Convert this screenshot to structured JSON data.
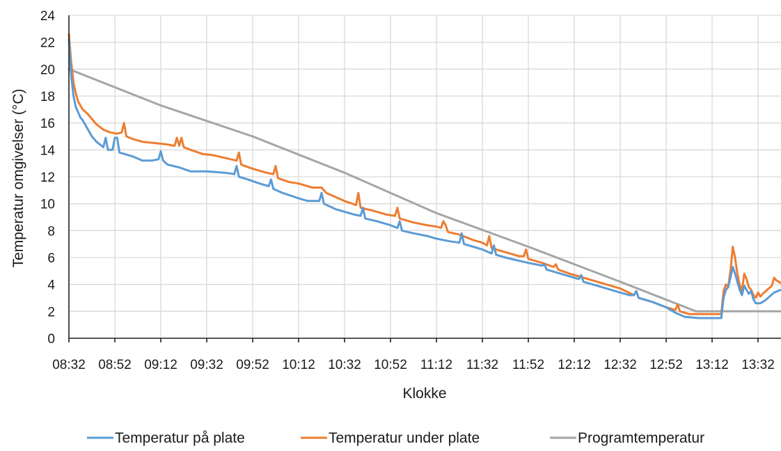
{
  "chart_data": {
    "type": "line",
    "title": "",
    "xlabel": "Klokke",
    "ylabel": "Temperatur omgivelser (°C)",
    "ylim": [
      0,
      24
    ],
    "yticks": [
      0,
      2,
      4,
      6,
      8,
      10,
      12,
      14,
      16,
      18,
      20,
      22,
      24
    ],
    "xlim": [
      "08:32",
      "13:42"
    ],
    "xticks": [
      "08:32",
      "08:52",
      "09:12",
      "09:32",
      "09:52",
      "10:12",
      "10:32",
      "10:52",
      "11:12",
      "11:32",
      "11:52",
      "12:12",
      "12:32",
      "12:52",
      "13:12",
      "13:32"
    ],
    "grid": true,
    "legend_position": "bottom",
    "series": [
      {
        "name": "Temperatur på plate",
        "color": "#5b9bd5",
        "points": [
          [
            "08:32",
            22.2
          ],
          [
            "08:33",
            19.5
          ],
          [
            "08:34",
            18.0
          ],
          [
            "08:35",
            17.2
          ],
          [
            "08:36",
            16.8
          ],
          [
            "08:37",
            16.4
          ],
          [
            "08:38",
            16.2
          ],
          [
            "08:40",
            15.6
          ],
          [
            "08:42",
            15.0
          ],
          [
            "08:44",
            14.6
          ],
          [
            "08:47",
            14.2
          ],
          [
            "08:48",
            14.9
          ],
          [
            "08:49",
            14.0
          ],
          [
            "08:51",
            14.0
          ],
          [
            "08:52",
            14.9
          ],
          [
            "08:53",
            14.9
          ],
          [
            "08:54",
            13.8
          ],
          [
            "08:56",
            13.7
          ],
          [
            "09:00",
            13.5
          ],
          [
            "09:04",
            13.2
          ],
          [
            "09:08",
            13.2
          ],
          [
            "09:11",
            13.3
          ],
          [
            "09:12",
            13.9
          ],
          [
            "09:13",
            13.2
          ],
          [
            "09:15",
            12.9
          ],
          [
            "09:20",
            12.7
          ],
          [
            "09:25",
            12.4
          ],
          [
            "09:32",
            12.4
          ],
          [
            "09:40",
            12.3
          ],
          [
            "09:44",
            12.2
          ],
          [
            "09:45",
            12.8
          ],
          [
            "09:46",
            12.0
          ],
          [
            "09:50",
            11.8
          ],
          [
            "09:55",
            11.5
          ],
          [
            "09:59",
            11.3
          ],
          [
            "10:00",
            11.8
          ],
          [
            "10:01",
            11.1
          ],
          [
            "10:05",
            10.8
          ],
          [
            "10:12",
            10.4
          ],
          [
            "10:16",
            10.2
          ],
          [
            "10:21",
            10.2
          ],
          [
            "10:22",
            10.8
          ],
          [
            "10:23",
            10.0
          ],
          [
            "10:28",
            9.6
          ],
          [
            "10:32",
            9.4
          ],
          [
            "10:36",
            9.2
          ],
          [
            "10:39",
            9.1
          ],
          [
            "10:40",
            9.7
          ],
          [
            "10:41",
            8.9
          ],
          [
            "10:46",
            8.7
          ],
          [
            "10:52",
            8.4
          ],
          [
            "10:55",
            8.2
          ],
          [
            "10:56",
            8.7
          ],
          [
            "10:57",
            8.0
          ],
          [
            "11:02",
            7.8
          ],
          [
            "11:08",
            7.6
          ],
          [
            "11:12",
            7.4
          ],
          [
            "11:18",
            7.2
          ],
          [
            "11:22",
            7.1
          ],
          [
            "11:23",
            7.8
          ],
          [
            "11:24",
            7.0
          ],
          [
            "11:28",
            6.8
          ],
          [
            "11:32",
            6.6
          ],
          [
            "11:36",
            6.3
          ],
          [
            "11:37",
            6.9
          ],
          [
            "11:38",
            6.2
          ],
          [
            "11:42",
            6.0
          ],
          [
            "11:47",
            5.8
          ],
          [
            "11:52",
            5.6
          ],
          [
            "11:58",
            5.4
          ],
          [
            "11:59",
            5.5
          ],
          [
            "12:00",
            5.1
          ],
          [
            "12:06",
            4.8
          ],
          [
            "12:12",
            4.5
          ],
          [
            "12:14",
            4.4
          ],
          [
            "12:15",
            4.7
          ],
          [
            "12:16",
            4.2
          ],
          [
            "12:22",
            3.9
          ],
          [
            "12:28",
            3.6
          ],
          [
            "12:32",
            3.4
          ],
          [
            "12:36",
            3.2
          ],
          [
            "12:38",
            3.2
          ],
          [
            "12:39",
            3.5
          ],
          [
            "12:40",
            3.0
          ],
          [
            "12:46",
            2.7
          ],
          [
            "12:52",
            2.3
          ],
          [
            "12:54",
            2.1
          ],
          [
            "12:56",
            1.9
          ],
          [
            "13:00",
            1.6
          ],
          [
            "13:06",
            1.5
          ],
          [
            "13:12",
            1.5
          ],
          [
            "13:16",
            1.5
          ],
          [
            "13:17",
            3.0
          ],
          [
            "13:18",
            3.6
          ],
          [
            "13:19",
            3.8
          ],
          [
            "13:20",
            4.5
          ],
          [
            "13:21",
            5.3
          ],
          [
            "13:22",
            4.8
          ],
          [
            "13:23",
            4.2
          ],
          [
            "13:24",
            3.6
          ],
          [
            "13:25",
            3.2
          ],
          [
            "13:26",
            3.9
          ],
          [
            "13:27",
            3.6
          ],
          [
            "13:28",
            3.3
          ],
          [
            "13:29",
            3.5
          ],
          [
            "13:30",
            2.9
          ],
          [
            "13:31",
            2.6
          ],
          [
            "13:33",
            2.6
          ],
          [
            "13:35",
            2.8
          ],
          [
            "13:37",
            3.1
          ],
          [
            "13:39",
            3.4
          ],
          [
            "13:42",
            3.6
          ]
        ]
      },
      {
        "name": "Temperatur under plate",
        "color": "#ed7d31",
        "points": [
          [
            "08:32",
            22.6
          ],
          [
            "08:33",
            20.5
          ],
          [
            "08:34",
            19.0
          ],
          [
            "08:35",
            18.2
          ],
          [
            "08:36",
            17.6
          ],
          [
            "08:38",
            17.0
          ],
          [
            "08:40",
            16.7
          ],
          [
            "08:42",
            16.3
          ],
          [
            "08:44",
            15.9
          ],
          [
            "08:47",
            15.5
          ],
          [
            "08:50",
            15.3
          ],
          [
            "08:53",
            15.2
          ],
          [
            "08:55",
            15.3
          ],
          [
            "08:56",
            16.0
          ],
          [
            "08:57",
            15.0
          ],
          [
            "09:00",
            14.8
          ],
          [
            "09:04",
            14.6
          ],
          [
            "09:10",
            14.5
          ],
          [
            "09:15",
            14.4
          ],
          [
            "09:18",
            14.3
          ],
          [
            "09:19",
            14.9
          ],
          [
            "09:20",
            14.3
          ],
          [
            "09:21",
            14.9
          ],
          [
            "09:22",
            14.2
          ],
          [
            "09:25",
            14.0
          ],
          [
            "09:30",
            13.7
          ],
          [
            "09:35",
            13.6
          ],
          [
            "09:40",
            13.4
          ],
          [
            "09:45",
            13.2
          ],
          [
            "09:46",
            13.8
          ],
          [
            "09:47",
            12.9
          ],
          [
            "09:52",
            12.6
          ],
          [
            "09:58",
            12.3
          ],
          [
            "10:01",
            12.2
          ],
          [
            "10:02",
            12.8
          ],
          [
            "10:03",
            11.9
          ],
          [
            "10:08",
            11.6
          ],
          [
            "10:12",
            11.5
          ],
          [
            "10:18",
            11.2
          ],
          [
            "10:22",
            11.2
          ],
          [
            "10:24",
            10.8
          ],
          [
            "10:28",
            10.5
          ],
          [
            "10:32",
            10.2
          ],
          [
            "10:37",
            9.9
          ],
          [
            "10:38",
            10.8
          ],
          [
            "10:39",
            9.7
          ],
          [
            "10:44",
            9.5
          ],
          [
            "10:50",
            9.2
          ],
          [
            "10:54",
            9.1
          ],
          [
            "10:55",
            9.7
          ],
          [
            "10:56",
            8.9
          ],
          [
            "11:02",
            8.6
          ],
          [
            "11:08",
            8.4
          ],
          [
            "11:12",
            8.3
          ],
          [
            "11:14",
            8.2
          ],
          [
            "11:15",
            8.7
          ],
          [
            "11:16",
            8.4
          ],
          [
            "11:17",
            7.9
          ],
          [
            "11:22",
            7.7
          ],
          [
            "11:28",
            7.3
          ],
          [
            "11:32",
            7.1
          ],
          [
            "11:34",
            6.9
          ],
          [
            "11:35",
            7.6
          ],
          [
            "11:36",
            6.7
          ],
          [
            "11:42",
            6.4
          ],
          [
            "11:48",
            6.1
          ],
          [
            "11:50",
            6.1
          ],
          [
            "11:51",
            6.6
          ],
          [
            "11:52",
            5.9
          ],
          [
            "11:58",
            5.6
          ],
          [
            "12:03",
            5.3
          ],
          [
            "12:04",
            5.5
          ],
          [
            "12:05",
            5.1
          ],
          [
            "12:10",
            4.8
          ],
          [
            "12:16",
            4.5
          ],
          [
            "12:22",
            4.2
          ],
          [
            "12:28",
            3.9
          ],
          [
            "12:32",
            3.7
          ],
          [
            "12:38",
            3.2
          ],
          [
            "12:39",
            3.5
          ],
          [
            "12:40",
            3.0
          ],
          [
            "12:46",
            2.7
          ],
          [
            "12:52",
            2.3
          ],
          [
            "12:56",
            2.1
          ],
          [
            "12:57",
            2.5
          ],
          [
            "12:58",
            2.0
          ],
          [
            "13:02",
            1.8
          ],
          [
            "13:08",
            1.8
          ],
          [
            "13:16",
            1.8
          ],
          [
            "13:17",
            3.5
          ],
          [
            "13:18",
            4.0
          ],
          [
            "13:19",
            3.8
          ],
          [
            "13:20",
            5.0
          ],
          [
            "13:21",
            6.8
          ],
          [
            "13:22",
            6.0
          ],
          [
            "13:23",
            4.8
          ],
          [
            "13:24",
            4.0
          ],
          [
            "13:25",
            3.5
          ],
          [
            "13:26",
            4.8
          ],
          [
            "13:27",
            4.4
          ],
          [
            "13:28",
            3.8
          ],
          [
            "13:29",
            3.6
          ],
          [
            "13:30",
            3.2
          ],
          [
            "13:31",
            3.0
          ],
          [
            "13:32",
            3.4
          ],
          [
            "13:33",
            3.1
          ],
          [
            "13:34",
            3.3
          ],
          [
            "13:36",
            3.6
          ],
          [
            "13:38",
            3.9
          ],
          [
            "13:39",
            4.5
          ],
          [
            "13:40",
            4.3
          ],
          [
            "13:42",
            4.1
          ]
        ]
      },
      {
        "name": "Programtemperatur",
        "color": "#a5a5a5",
        "points": [
          [
            "08:32",
            20.0
          ],
          [
            "09:12",
            17.3
          ],
          [
            "09:52",
            15.0
          ],
          [
            "10:32",
            12.3
          ],
          [
            "11:12",
            9.3
          ],
          [
            "11:52",
            6.8
          ],
          [
            "12:32",
            4.2
          ],
          [
            "13:05",
            2.0
          ],
          [
            "13:42",
            2.0
          ]
        ]
      }
    ]
  }
}
